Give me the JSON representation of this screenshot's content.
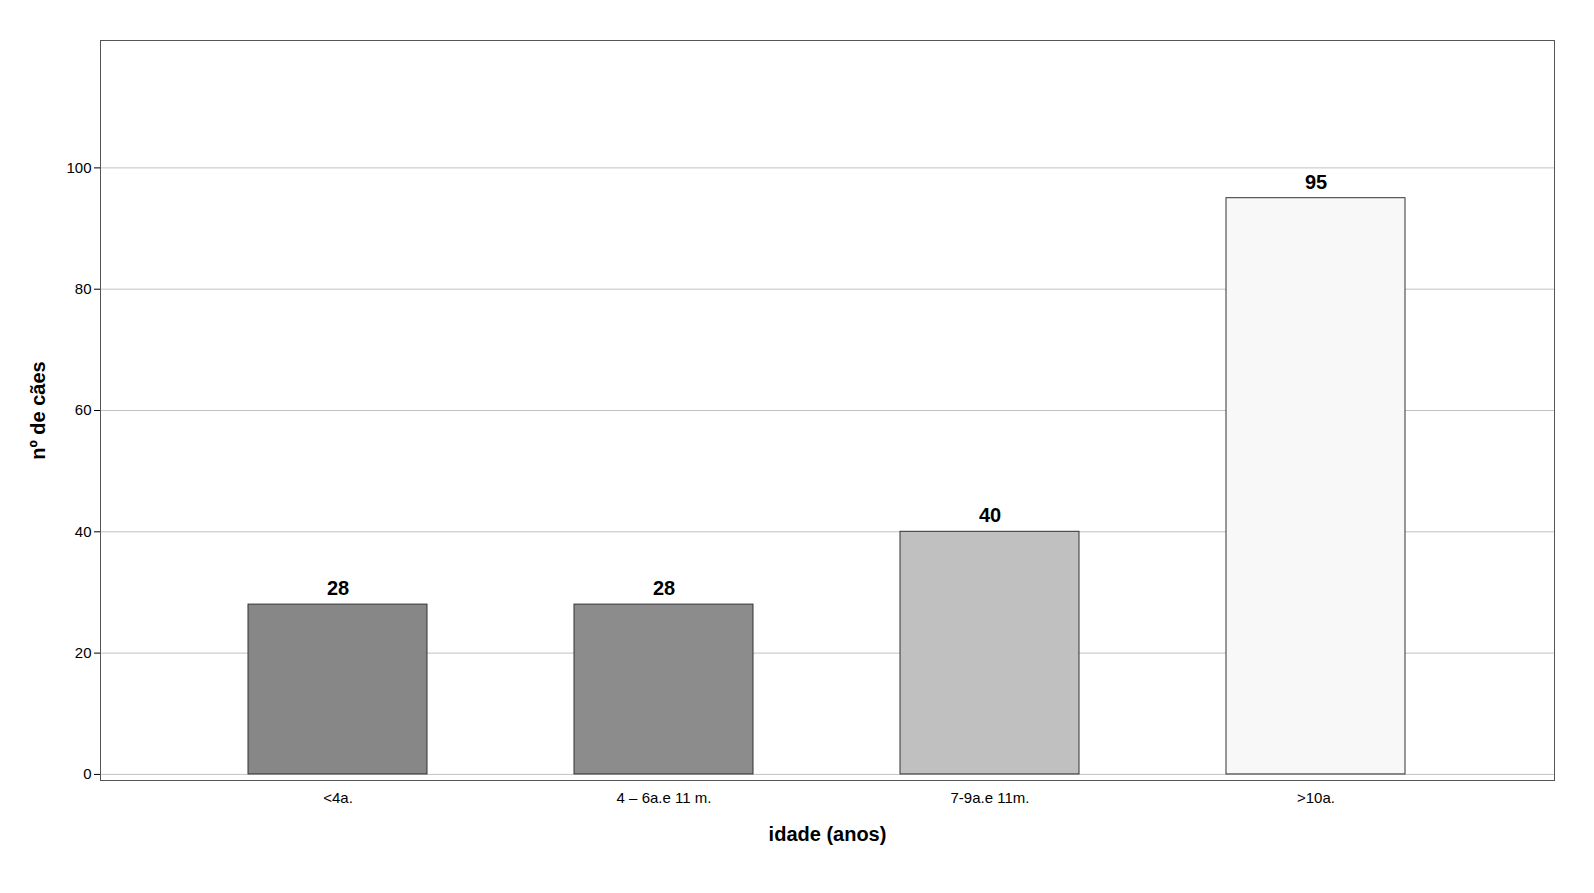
{
  "chart_data": {
    "type": "bar",
    "categories": [
      "<4a.",
      "4 – 6a.e 11 m.",
      "7-9a.e 11m.",
      ">10a."
    ],
    "values": [
      28,
      28,
      40,
      95
    ],
    "colors": [
      "#878787",
      "#8c8c8c",
      "#c0c0c0",
      "#f8f8f8"
    ],
    "xlabel": "idade (anos)",
    "ylabel": "nº de cães",
    "ylim": [
      -1,
      121
    ],
    "yticks": [
      0,
      20,
      40,
      60,
      80,
      100
    ],
    "grid": true,
    "data_labels": true
  }
}
